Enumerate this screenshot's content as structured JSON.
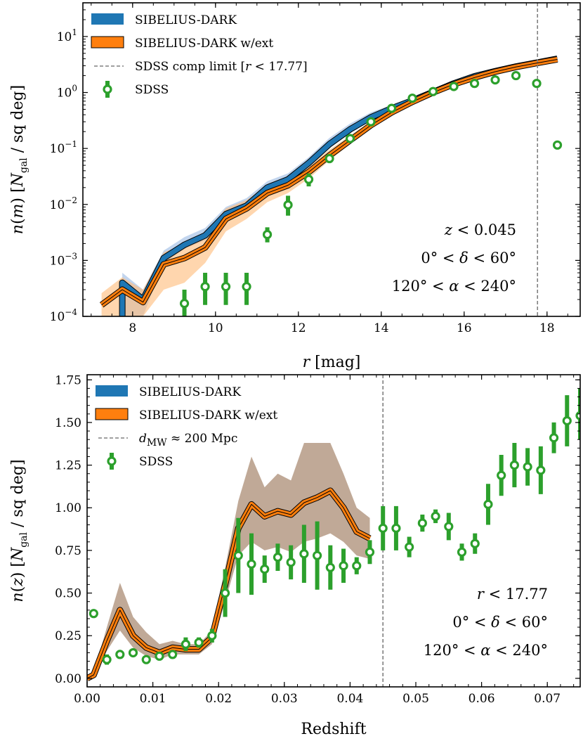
{
  "colors": {
    "dark": "#1f77b4",
    "ext": "#ff7f0e",
    "sdss": "#2ca02c",
    "band_dark": "#aec7e8",
    "band_ext": "#ffbb78",
    "band_overlap": "#b59a85",
    "limit": "#808080"
  },
  "chart_data": [
    {
      "type": "line",
      "id": "top",
      "title": "",
      "xlabel": "r [mag]",
      "ylabel": "n(m) [N_gal / sq deg]",
      "xlim": [
        6.8,
        18.8
      ],
      "ylim": [
        0.0001,
        40
      ],
      "yscale": "log",
      "xticks": [
        8,
        10,
        12,
        14,
        16,
        18
      ],
      "xtick_labels": [
        "8",
        "10",
        "12",
        "14",
        "16",
        "18"
      ],
      "yticks": [
        0.0001,
        0.001,
        0.01,
        0.1,
        1,
        10
      ],
      "ytick_labels": [
        {
          "base": "10",
          "exp": "−4"
        },
        {
          "base": "10",
          "exp": "−3"
        },
        {
          "base": "10",
          "exp": "−2"
        },
        {
          "base": "10",
          "exp": "−1"
        },
        {
          "base": "10",
          "exp": "0"
        },
        {
          "base": "10",
          "exp": "1"
        }
      ],
      "legend": {
        "position": "top-left",
        "entries": [
          "SIBELIUS-DARK",
          "SIBELIUS-DARK w/ext",
          "SDSS comp limit [r < 17.77]",
          "SDSS"
        ]
      },
      "annotations": [
        "z < 0.045",
        "0° < δ < 60°",
        "120° < α < 240°"
      ],
      "vline": 17.77,
      "series": [
        {
          "name": "SIBELIUS-DARK",
          "x": [
            7.75,
            7.75,
            8.25,
            8.75,
            9.25,
            9.75,
            10.25,
            10.75,
            11.25,
            11.75,
            12.25,
            12.75,
            13.25,
            13.75,
            14.25,
            14.75,
            15.25,
            15.75,
            16.25,
            16.75,
            17.25,
            17.75,
            18.25
          ],
          "y": [
            0.0001,
            0.0004,
            0.0002,
            0.0011,
            0.0019,
            0.0028,
            0.0067,
            0.0095,
            0.02,
            0.028,
            0.055,
            0.12,
            0.22,
            0.36,
            0.52,
            0.72,
            1.02,
            1.45,
            1.95,
            2.4,
            2.9,
            3.4,
            4.0
          ],
          "band_low": [
            0.0001,
            0.0001,
            0.0001,
            0.0009,
            0.0016,
            0.0023,
            0.0055,
            0.008,
            0.017,
            0.024,
            0.047,
            0.1,
            0.19,
            0.31,
            0.46,
            0.64,
            0.93,
            1.3,
            1.75,
            2.2,
            2.7,
            3.1,
            3.6
          ],
          "band_high": [
            0.0001,
            0.0006,
            0.0003,
            0.0015,
            0.0026,
            0.0038,
            0.009,
            0.013,
            0.026,
            0.036,
            0.07,
            0.155,
            0.28,
            0.44,
            0.6,
            0.82,
            1.12,
            1.6,
            2.15,
            2.65,
            3.1,
            3.7,
            4.4
          ]
        },
        {
          "name": "SIBELIUS-DARK w/ext",
          "x": [
            7.25,
            7.75,
            8.25,
            8.75,
            9.25,
            9.75,
            10.25,
            10.75,
            11.25,
            11.75,
            12.25,
            12.75,
            13.25,
            13.75,
            14.25,
            14.75,
            15.25,
            15.75,
            16.25,
            16.75,
            17.25,
            17.75,
            18.25
          ],
          "y": [
            0.00016,
            0.0003,
            0.00018,
            0.00085,
            0.0011,
            0.0017,
            0.0055,
            0.0085,
            0.016,
            0.022,
            0.038,
            0.075,
            0.14,
            0.26,
            0.44,
            0.68,
            1.0,
            1.4,
            1.85,
            2.35,
            2.85,
            3.35,
            3.9
          ],
          "band_low": [
            0.0001,
            0.0001,
            0.0001,
            0.0003,
            0.0004,
            0.0009,
            0.0033,
            0.0055,
            0.011,
            0.016,
            0.029,
            0.061,
            0.12,
            0.23,
            0.4,
            0.62,
            0.92,
            1.3,
            1.72,
            2.2,
            2.65,
            3.1,
            3.6
          ],
          "band_high": [
            0.00026,
            0.0005,
            0.0003,
            0.0014,
            0.0019,
            0.003,
            0.0085,
            0.012,
            0.022,
            0.03,
            0.05,
            0.095,
            0.17,
            0.31,
            0.5,
            0.76,
            1.1,
            1.52,
            2.0,
            2.52,
            3.05,
            3.6,
            4.2
          ]
        },
        {
          "name": "SDSS",
          "x": [
            9.25,
            9.75,
            10.25,
            10.75,
            11.25,
            11.75,
            12.25,
            12.75,
            13.25,
            13.75,
            14.25,
            14.75,
            15.25,
            15.75,
            16.25,
            16.75,
            17.25,
            17.75,
            18.25
          ],
          "y": [
            0.00017,
            0.00034,
            0.00034,
            0.00034,
            0.0029,
            0.0098,
            0.028,
            0.066,
            0.15,
            0.3,
            0.52,
            0.79,
            1.04,
            1.28,
            1.45,
            1.68,
            2.0,
            1.45,
            0.115
          ],
          "yerr_low": [
            0.0001,
            0.00016,
            0.00016,
            0.00016,
            0.0021,
            0.0063,
            0.021,
            0.058,
            0.14,
            0.285,
            0.5,
            0.77,
            1.02,
            1.26,
            1.43,
            1.66,
            1.98,
            1.43,
            0.113
          ],
          "yerr_high": [
            0.0003,
            0.0006,
            0.0006,
            0.0006,
            0.0039,
            0.0143,
            0.036,
            0.075,
            0.16,
            0.315,
            0.54,
            0.81,
            1.06,
            1.3,
            1.47,
            1.7,
            2.02,
            1.47,
            0.117
          ]
        }
      ]
    },
    {
      "type": "line",
      "id": "bottom",
      "title": "",
      "xlabel": "Redshift",
      "ylabel": "n(z) [N_gal / sq deg]",
      "xlim": [
        0,
        0.075
      ],
      "ylim": [
        -0.05,
        1.78
      ],
      "yscale": "linear",
      "xticks": [
        0.0,
        0.01,
        0.02,
        0.03,
        0.04,
        0.05,
        0.06,
        0.07
      ],
      "xtick_labels": [
        "0.00",
        "0.01",
        "0.02",
        "0.03",
        "0.04",
        "0.05",
        "0.06",
        "0.07"
      ],
      "yticks": [
        0.0,
        0.25,
        0.5,
        0.75,
        1.0,
        1.25,
        1.5,
        1.75
      ],
      "ytick_labels": [
        "0.00",
        "0.25",
        "0.50",
        "0.75",
        "1.00",
        "1.25",
        "1.50",
        "1.75"
      ],
      "legend": {
        "position": "top-left",
        "entries": [
          "SIBELIUS-DARK",
          "SIBELIUS-DARK w/ext",
          "d_MW ≈ 200 Mpc",
          "SDSS"
        ]
      },
      "annotations": [
        "r < 17.77",
        "0° < δ < 60°",
        "120° < α < 240°"
      ],
      "vline": 0.045,
      "series": [
        {
          "name": "SIBELIUS-DARK",
          "x": [
            0.0,
            0.001,
            0.003,
            0.005,
            0.007,
            0.009,
            0.011,
            0.013,
            0.015,
            0.017,
            0.019,
            0.021,
            0.023,
            0.025,
            0.027,
            0.029,
            0.031,
            0.033,
            0.035,
            0.037,
            0.039,
            0.041,
            0.043
          ],
          "y": [
            0.0,
            0.02,
            0.22,
            0.4,
            0.25,
            0.18,
            0.15,
            0.18,
            0.17,
            0.17,
            0.24,
            0.55,
            0.88,
            1.02,
            0.95,
            0.98,
            0.96,
            1.03,
            1.06,
            1.1,
            1.0,
            0.86,
            0.82
          ],
          "band_low": [
            0.0,
            0.01,
            0.16,
            0.28,
            0.18,
            0.13,
            0.11,
            0.14,
            0.14,
            0.14,
            0.2,
            0.45,
            0.72,
            0.8,
            0.75,
            0.77,
            0.74,
            0.8,
            0.82,
            0.85,
            0.8,
            0.72,
            0.7
          ],
          "band_high": [
            0.0,
            0.03,
            0.3,
            0.56,
            0.36,
            0.27,
            0.2,
            0.22,
            0.2,
            0.2,
            0.28,
            0.65,
            1.04,
            1.3,
            1.12,
            1.2,
            1.16,
            1.38,
            1.38,
            1.38,
            1.2,
            1.0,
            0.94
          ]
        },
        {
          "name": "SIBELIUS-DARK w/ext",
          "x": [
            0.0,
            0.001,
            0.003,
            0.005,
            0.007,
            0.009,
            0.011,
            0.013,
            0.015,
            0.017,
            0.019,
            0.021,
            0.023,
            0.025,
            0.027,
            0.029,
            0.031,
            0.033,
            0.035,
            0.037,
            0.039,
            0.041,
            0.043
          ],
          "y": [
            0.0,
            0.02,
            0.22,
            0.4,
            0.25,
            0.18,
            0.15,
            0.18,
            0.17,
            0.17,
            0.24,
            0.55,
            0.88,
            1.02,
            0.95,
            0.98,
            0.96,
            1.03,
            1.06,
            1.1,
            1.0,
            0.86,
            0.82
          ],
          "band_low": [
            0.0,
            0.01,
            0.16,
            0.28,
            0.18,
            0.13,
            0.11,
            0.14,
            0.14,
            0.14,
            0.2,
            0.45,
            0.72,
            0.8,
            0.75,
            0.77,
            0.74,
            0.8,
            0.82,
            0.85,
            0.8,
            0.72,
            0.7
          ],
          "band_high": [
            0.0,
            0.03,
            0.3,
            0.56,
            0.36,
            0.27,
            0.2,
            0.22,
            0.2,
            0.2,
            0.28,
            0.65,
            1.04,
            1.3,
            1.12,
            1.2,
            1.16,
            1.38,
            1.38,
            1.38,
            1.2,
            1.0,
            0.94
          ]
        },
        {
          "name": "SDSS",
          "x": [
            0.001,
            0.003,
            0.005,
            0.007,
            0.009,
            0.011,
            0.013,
            0.015,
            0.017,
            0.019,
            0.021,
            0.023,
            0.025,
            0.027,
            0.029,
            0.031,
            0.033,
            0.035,
            0.037,
            0.039,
            0.041,
            0.043,
            0.045,
            0.047,
            0.049,
            0.051,
            0.053,
            0.055,
            0.057,
            0.059,
            0.061,
            0.063,
            0.065,
            0.067,
            0.069,
            0.071,
            0.073,
            0.075
          ],
          "y": [
            0.38,
            0.11,
            0.14,
            0.15,
            0.11,
            0.13,
            0.14,
            0.2,
            0.21,
            0.25,
            0.5,
            0.72,
            0.67,
            0.64,
            0.71,
            0.68,
            0.73,
            0.72,
            0.65,
            0.66,
            0.66,
            0.74,
            0.88,
            0.88,
            0.77,
            0.91,
            0.95,
            0.89,
            0.74,
            0.79,
            1.02,
            1.19,
            1.25,
            1.24,
            1.22,
            1.41,
            1.51,
            1.54
          ],
          "yerr_low": [
            0.38,
            0.08,
            0.12,
            0.13,
            0.1,
            0.11,
            0.12,
            0.16,
            0.18,
            0.21,
            0.36,
            0.5,
            0.49,
            0.56,
            0.63,
            0.58,
            0.56,
            0.52,
            0.52,
            0.56,
            0.61,
            0.67,
            0.75,
            0.75,
            0.71,
            0.86,
            0.91,
            0.81,
            0.69,
            0.73,
            0.9,
            1.07,
            1.12,
            1.13,
            1.08,
            1.32,
            1.36,
            1.4
          ],
          "yerr_high": [
            0.38,
            0.14,
            0.16,
            0.17,
            0.12,
            0.15,
            0.16,
            0.24,
            0.24,
            0.29,
            0.64,
            0.94,
            0.85,
            0.72,
            0.79,
            0.78,
            0.9,
            0.92,
            0.78,
            0.76,
            0.71,
            0.81,
            1.01,
            1.01,
            0.83,
            0.96,
            0.99,
            0.97,
            0.79,
            0.85,
            1.14,
            1.31,
            1.38,
            1.35,
            1.36,
            1.5,
            1.66,
            1.7
          ]
        }
      ]
    }
  ]
}
